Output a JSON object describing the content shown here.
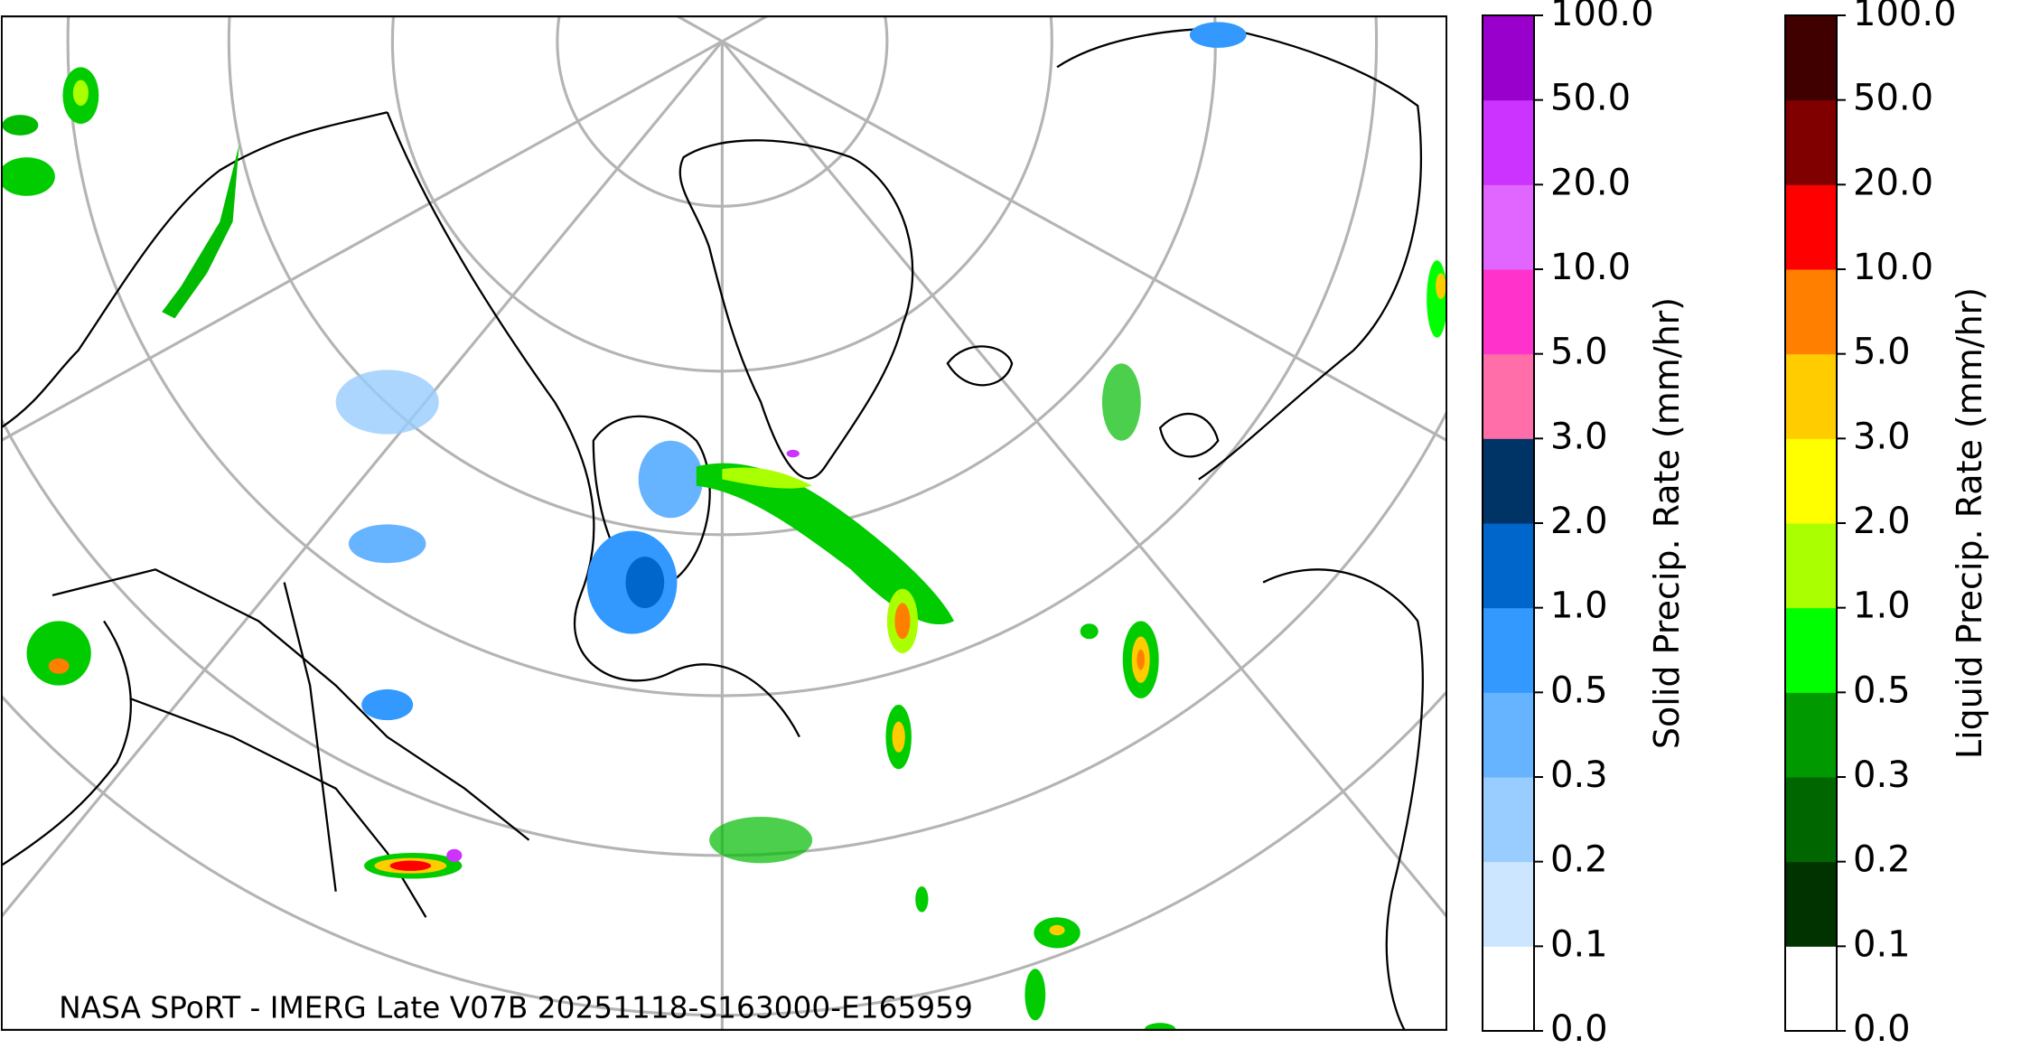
{
  "map": {
    "credit": "NASA SPoRT - IMERG Late V07B 20251118-S163000-E165959"
  },
  "colorbars": [
    {
      "label": "Solid Precip. Rate (mm/hr)",
      "levels": [
        "0.0",
        "0.1",
        "0.2",
        "0.3",
        "0.5",
        "1.0",
        "2.0",
        "3.0",
        "5.0",
        "10.0",
        "20.0",
        "50.0",
        "100.0"
      ],
      "colors": [
        "#ffffff",
        "#cce6ff",
        "#99ccff",
        "#66b3ff",
        "#3399ff",
        "#0066cc",
        "#003366",
        "#ff6ea8",
        "#ff33cc",
        "#e066ff",
        "#cc33ff",
        "#9900cc"
      ]
    },
    {
      "label": "Liquid Precip. Rate (mm/hr)",
      "levels": [
        "0.0",
        "0.1",
        "0.2",
        "0.3",
        "0.5",
        "1.0",
        "2.0",
        "3.0",
        "5.0",
        "10.0",
        "20.0",
        "50.0",
        "100.0"
      ],
      "colors": [
        "#ffffff",
        "#003300",
        "#006600",
        "#009900",
        "#00ff00",
        "#aaff00",
        "#ffff00",
        "#ffcc00",
        "#ff8000",
        "#ff0000",
        "#800000",
        "#400000"
      ]
    }
  ]
}
